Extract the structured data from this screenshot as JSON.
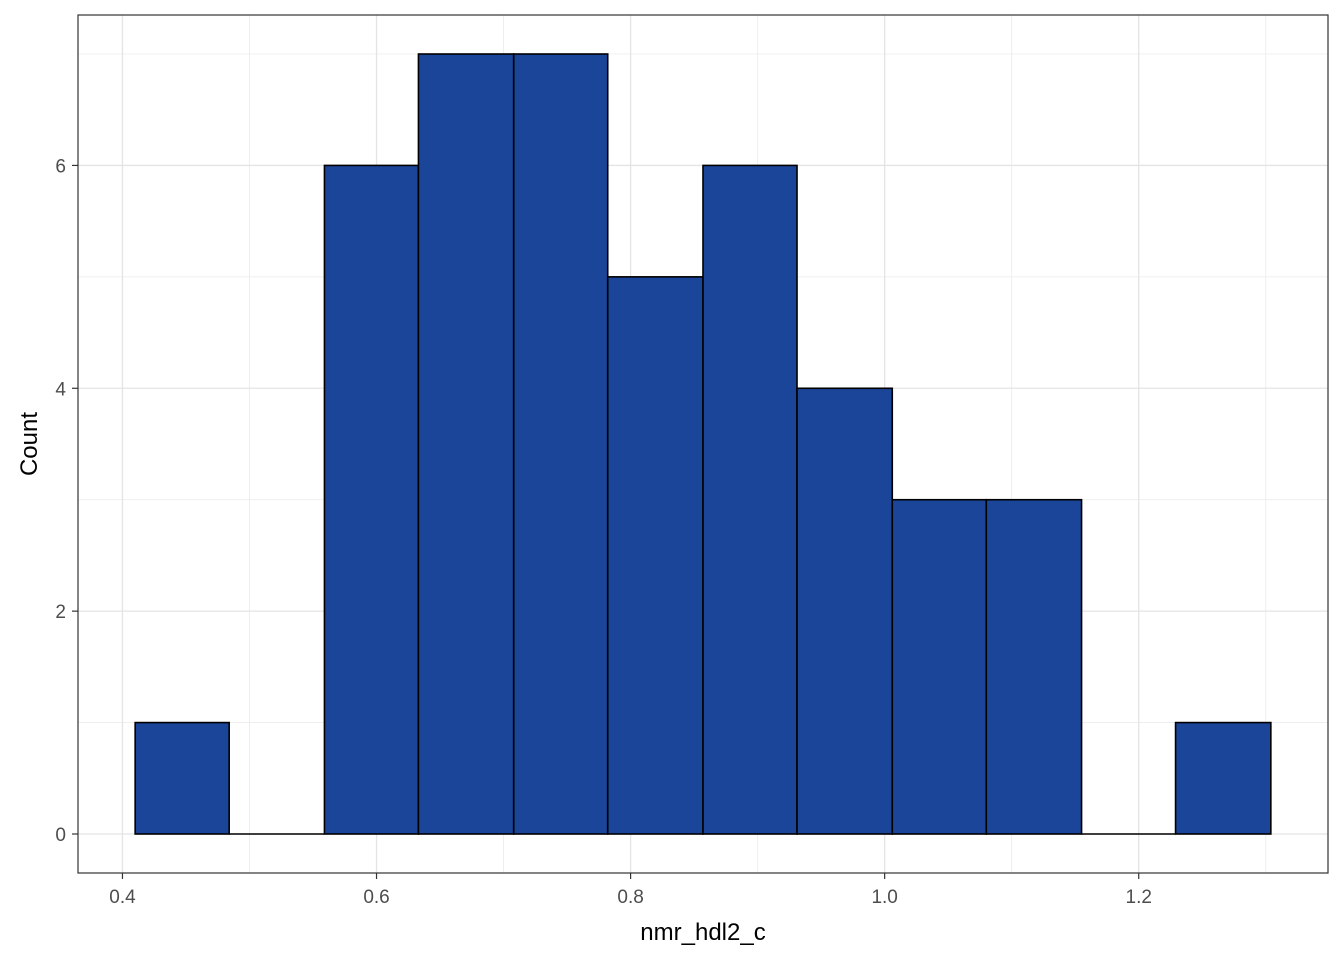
{
  "chart_data": {
    "type": "bar",
    "subtype": "histogram",
    "title": "",
    "xlabel": "nmr_hdl2_c",
    "ylabel": "Count",
    "bins": [
      {
        "x0": 0.41,
        "x1": 0.484,
        "count": 1
      },
      {
        "x0": 0.484,
        "x1": 0.559,
        "count": 0
      },
      {
        "x0": 0.559,
        "x1": 0.633,
        "count": 6
      },
      {
        "x0": 0.633,
        "x1": 0.708,
        "count": 7
      },
      {
        "x0": 0.708,
        "x1": 0.782,
        "count": 7
      },
      {
        "x0": 0.782,
        "x1": 0.857,
        "count": 5
      },
      {
        "x0": 0.857,
        "x1": 0.931,
        "count": 6
      },
      {
        "x0": 0.931,
        "x1": 1.006,
        "count": 4
      },
      {
        "x0": 1.006,
        "x1": 1.08,
        "count": 3
      },
      {
        "x0": 1.08,
        "x1": 1.155,
        "count": 3
      },
      {
        "x0": 1.155,
        "x1": 1.229,
        "count": 0
      },
      {
        "x0": 1.229,
        "x1": 1.304,
        "count": 1
      }
    ],
    "xlim": [
      0.365,
      1.349
    ],
    "ylim": [
      -0.35,
      7.35
    ],
    "x_ticks": [
      0.4,
      0.6,
      0.8,
      1.0,
      1.2
    ],
    "x_tick_labels": [
      "0.4",
      "0.6",
      "0.8",
      "1.0",
      "1.2"
    ],
    "y_ticks": [
      0,
      2,
      4,
      6
    ],
    "y_tick_labels": [
      "0",
      "2",
      "4",
      "6"
    ],
    "grid": true,
    "fill_color": "#1a4599",
    "edge_color": "#000000"
  }
}
